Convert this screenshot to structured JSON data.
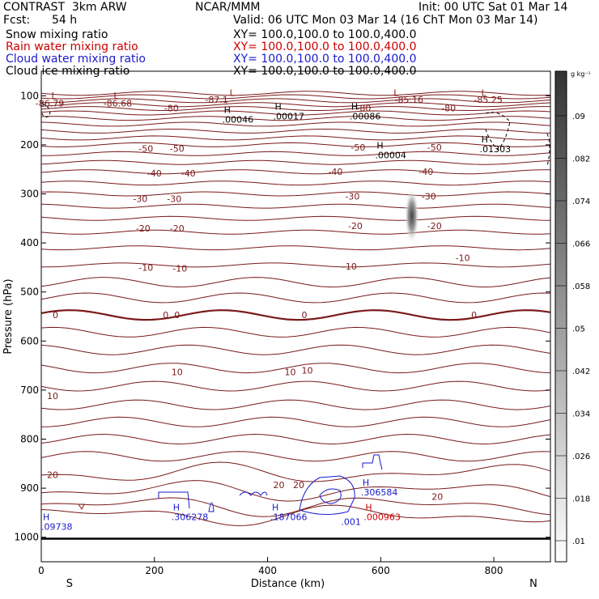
{
  "header": {
    "title": "CONTRAST  3km ARW",
    "center": "NCAR/MMM",
    "init": "Init: 00 UTC Sat 01 Mar 14",
    "fcst_label": "Fcst:",
    "fcst_value": "54 h",
    "valid": "Valid: 06 UTC Mon 03 Mar 14 (16 ChT Mon 03 Mar 14)"
  },
  "fields": [
    {
      "name": "Snow mixing ratio",
      "xy": "XY= 100.0,100.0 to 100.0,400.0",
      "color": "#000000"
    },
    {
      "name": "Rain water mixing ratio",
      "xy": "XY= 100.0,100.0 to 100.0,400.0",
      "color": "#cc0000"
    },
    {
      "name": "Cloud water mixing ratio",
      "xy": "XY= 100.0,100.0 to 100.0,400.0",
      "color": "#1a1acc"
    },
    {
      "name": "Cloud ice mixing ratio",
      "xy": "XY= 100.0,100.0 to 100.0,400.0",
      "color": "#000000"
    }
  ],
  "colorbar": {
    "unit": "g kg⁻¹",
    "levels": [
      ".01",
      ".018",
      ".026",
      ".034",
      ".042",
      ".05",
      ".058",
      ".066",
      ".074",
      ".082",
      ".09"
    ]
  },
  "chart_data": {
    "type": "cross-section contour",
    "xlabel": "Distance (km)",
    "ylabel": "Pressure (hPa)",
    "xlim": [
      0,
      900
    ],
    "ylim": [
      1050,
      50
    ],
    "x_ticks": [
      "0",
      "200",
      "400",
      "600",
      "800"
    ],
    "y_ticks": [
      "100",
      "200",
      "300",
      "400",
      "500",
      "600",
      "700",
      "800",
      "900",
      "1000"
    ],
    "x_end_labels": {
      "left": "S",
      "right": "N"
    },
    "temperature_labels": [
      {
        "x": 15,
        "p": 115,
        "text": "-86.79"
      },
      {
        "x": 135,
        "p": 115,
        "text": "-86.68"
      },
      {
        "x": 310,
        "p": 108,
        "text": "-87.1"
      },
      {
        "x": 650,
        "p": 108,
        "text": "-85.16"
      },
      {
        "x": 790,
        "p": 108,
        "text": "-85.25"
      },
      {
        "x": 230,
        "p": 125,
        "text": "-80"
      },
      {
        "x": 570,
        "p": 125,
        "text": "-80"
      },
      {
        "x": 720,
        "p": 125,
        "text": "-80"
      },
      {
        "x": 185,
        "p": 208,
        "text": "-50"
      },
      {
        "x": 240,
        "p": 208,
        "text": "-50"
      },
      {
        "x": 560,
        "p": 205,
        "text": "-50"
      },
      {
        "x": 695,
        "p": 205,
        "text": "-50"
      },
      {
        "x": 200,
        "p": 258,
        "text": "-40"
      },
      {
        "x": 260,
        "p": 258,
        "text": "-40"
      },
      {
        "x": 520,
        "p": 255,
        "text": "-40"
      },
      {
        "x": 680,
        "p": 255,
        "text": "-40"
      },
      {
        "x": 175,
        "p": 310,
        "text": "-30"
      },
      {
        "x": 235,
        "p": 310,
        "text": "-30"
      },
      {
        "x": 550,
        "p": 305,
        "text": "-30"
      },
      {
        "x": 685,
        "p": 305,
        "text": "-30"
      },
      {
        "x": 180,
        "p": 370,
        "text": "-20"
      },
      {
        "x": 240,
        "p": 370,
        "text": "-20"
      },
      {
        "x": 555,
        "p": 365,
        "text": "-20"
      },
      {
        "x": 695,
        "p": 365,
        "text": "-20"
      },
      {
        "x": 185,
        "p": 450,
        "text": "-10"
      },
      {
        "x": 245,
        "p": 452,
        "text": "-10"
      },
      {
        "x": 545,
        "p": 448,
        "text": "-10"
      },
      {
        "x": 745,
        "p": 430,
        "text": "-10"
      },
      {
        "x": 25,
        "p": 547,
        "text": "0"
      },
      {
        "x": 220,
        "p": 547,
        "text": "0"
      },
      {
        "x": 240,
        "p": 547,
        "text": "0"
      },
      {
        "x": 465,
        "p": 547,
        "text": "0"
      },
      {
        "x": 765,
        "p": 547,
        "text": "0"
      },
      {
        "x": 240,
        "p": 663,
        "text": "10"
      },
      {
        "x": 440,
        "p": 663,
        "text": "10"
      },
      {
        "x": 470,
        "p": 660,
        "text": "10"
      },
      {
        "x": 20,
        "p": 712,
        "text": "10"
      },
      {
        "x": 20,
        "p": 873,
        "text": "20"
      },
      {
        "x": 420,
        "p": 893,
        "text": "20"
      },
      {
        "x": 455,
        "p": 893,
        "text": "20"
      },
      {
        "x": 700,
        "p": 917,
        "text": "20"
      }
    ],
    "extrema": [
      {
        "x": 15,
        "p": 106,
        "marker": "L",
        "value": "",
        "color": "#8b1a1a"
      },
      {
        "x": 125,
        "p": 106,
        "marker": "L",
        "value": "",
        "color": "#8b1a1a"
      },
      {
        "x": 330,
        "p": 100,
        "marker": "L",
        "value": "",
        "color": "#8b1a1a"
      },
      {
        "x": 620,
        "p": 100,
        "marker": "L",
        "value": "",
        "color": "#8b1a1a"
      },
      {
        "x": 775,
        "p": 100,
        "marker": "L",
        "value": "",
        "color": "#8b1a1a"
      },
      {
        "x": 320,
        "p": 135,
        "marker": "H",
        "value": ".00046",
        "color": "#000000"
      },
      {
        "x": 410,
        "p": 128,
        "marker": "H",
        "value": ".00017",
        "color": "#000000"
      },
      {
        "x": 545,
        "p": 128,
        "marker": "H",
        "value": ".00086",
        "color": "#000000"
      },
      {
        "x": 590,
        "p": 208,
        "marker": "H",
        "value": ".00004",
        "color": "#000000"
      },
      {
        "x": 775,
        "p": 195,
        "marker": "H",
        "value": ".01303",
        "color": "#000000"
      },
      {
        "x": 0,
        "p": 965,
        "marker": "H",
        "value": ".09738",
        "color": "#1a1acc"
      },
      {
        "x": 230,
        "p": 945,
        "marker": "H",
        "value": ".306278",
        "color": "#1a1acc"
      },
      {
        "x": 405,
        "p": 945,
        "marker": "H",
        "value": ".187066",
        "color": "#1a1acc"
      },
      {
        "x": 565,
        "p": 895,
        "marker": "H",
        "value": ".306584",
        "color": "#1a1acc"
      },
      {
        "x": 570,
        "p": 945,
        "marker": "H",
        "value": ".000963",
        "color": "#cc0000"
      },
      {
        "x": 530,
        "p": 955,
        "marker": "",
        "value": ".001",
        "color": "#1a1acc"
      }
    ],
    "shading_max": {
      "x": 655,
      "p": 345,
      "value": ".09"
    }
  }
}
